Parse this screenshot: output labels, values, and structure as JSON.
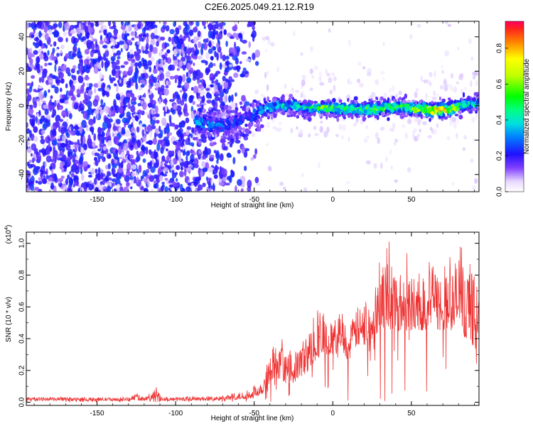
{
  "title": "C2E6.2025.049.21.12.R19",
  "chart_data": [
    {
      "type": "heatmap",
      "xlabel": "Height of straight line (km)",
      "ylabel": "Frequency (Hz)",
      "xlim": [
        -195,
        93
      ],
      "ylim": [
        -50,
        49
      ],
      "x_ticks": [
        -150,
        -100,
        -50,
        0,
        50
      ],
      "x_tick_labels": [
        "-150",
        "-100",
        "-50",
        "0",
        "50"
      ],
      "y_ticks": [
        -40,
        -20,
        0,
        20,
        40
      ],
      "y_tick_labels": [
        "-40",
        "-20",
        "0",
        "20",
        "40"
      ],
      "colorbar": {
        "label": "Normalized spectral amplitude",
        "range": [
          0.0,
          0.95
        ],
        "ticks": [
          0.0,
          0.2,
          0.4,
          0.6,
          0.8
        ],
        "tick_labels": [
          "0.0",
          "0.2",
          "0.4",
          "0.6",
          "0.8"
        ]
      },
      "ridge": {
        "x": [
          -85,
          -70,
          -55,
          -45,
          -35,
          -25,
          -15,
          -5,
          5,
          15,
          25,
          35,
          45,
          55,
          65,
          75,
          85,
          93
        ],
        "frequency": [
          -10,
          -12,
          -8,
          -3,
          0,
          0,
          -2,
          -1,
          -2,
          -2,
          -2,
          -1,
          -1,
          -2,
          -3,
          -2,
          1,
          1
        ],
        "amplitude": [
          0.35,
          0.3,
          0.25,
          0.4,
          0.45,
          0.45,
          0.5,
          0.6,
          0.55,
          0.6,
          0.7,
          0.6,
          0.55,
          0.7,
          0.95,
          0.8,
          0.5,
          0.45
        ]
      }
    },
    {
      "type": "line",
      "xlabel": "Height of straight line (km)",
      "ylabel": "SNR (10 * v/v)",
      "y_multiplier": "(x10",
      "y_multiplier_exp": "4",
      "xlim": [
        -195,
        93
      ],
      "ylim": [
        -0.02,
        1.07
      ],
      "x_ticks": [
        -150,
        -100,
        -50,
        0,
        50
      ],
      "x_tick_labels": [
        "-150",
        "-100",
        "-50",
        "0",
        "50"
      ],
      "y_ticks": [
        0.0,
        0.2,
        0.4,
        0.6,
        0.8,
        1.0
      ],
      "y_tick_labels": [
        "0.0",
        "0.2",
        "0.4",
        "0.6",
        "0.8",
        "1.0"
      ],
      "series": [
        {
          "color": "#ee3333",
          "x": [
            -195,
            -130,
            -125,
            -122,
            -118,
            -112,
            -110,
            -105,
            -70,
            -55,
            -50,
            -45,
            -40,
            -38,
            -35,
            -32,
            -30,
            -25,
            -20,
            -15,
            -10,
            -5,
            0,
            5,
            10,
            15,
            20,
            25,
            30,
            35,
            40,
            45,
            50,
            55,
            60,
            65,
            70,
            75,
            80,
            85,
            90,
            93
          ],
          "envelope": [
            0.03,
            0.03,
            0.06,
            0.04,
            0.04,
            0.09,
            0.04,
            0.03,
            0.04,
            0.07,
            0.1,
            0.15,
            0.28,
            0.38,
            0.32,
            0.35,
            0.3,
            0.3,
            0.38,
            0.45,
            0.55,
            0.52,
            0.5,
            0.6,
            0.45,
            0.6,
            0.6,
            0.65,
            0.85,
            0.9,
            0.85,
            0.8,
            0.85,
            0.75,
            0.9,
            0.85,
            0.8,
            0.82,
            0.95,
            0.85,
            0.8,
            0.75
          ],
          "baseline": [
            0.01,
            0.01,
            0.02,
            0.01,
            0.01,
            0.02,
            0.01,
            0.01,
            0.01,
            0.02,
            0.03,
            0.05,
            0.1,
            0.15,
            0.12,
            0.14,
            0.12,
            0.12,
            0.16,
            0.2,
            0.28,
            0.28,
            0.3,
            0.35,
            0.25,
            0.35,
            0.35,
            0.4,
            0.45,
            0.45,
            0.45,
            0.45,
            0.45,
            0.45,
            0.45,
            0.45,
            0.45,
            0.45,
            0.45,
            0.4,
            0.35,
            0.3
          ]
        }
      ]
    }
  ]
}
